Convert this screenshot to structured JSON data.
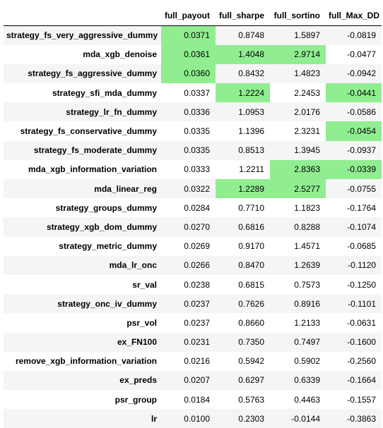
{
  "table": {
    "columns": [
      "",
      "full_payout",
      "full_sharpe",
      "full_sortino",
      "full_Max_DD"
    ],
    "highlight_color": "#90ee90",
    "rows": [
      {
        "name": "strategy_fs_very_aggressive_dummy",
        "values": [
          "0.0371",
          "0.8748",
          "1.5897",
          "-0.0819"
        ],
        "highlight": [
          true,
          false,
          false,
          false
        ]
      },
      {
        "name": "mda_xgb_denoise",
        "values": [
          "0.0361",
          "1.4048",
          "2.9714",
          "-0.0477"
        ],
        "highlight": [
          true,
          true,
          true,
          false
        ]
      },
      {
        "name": "strategy_fs_aggressive_dummy",
        "values": [
          "0.0360",
          "0.8432",
          "1.4823",
          "-0.0942"
        ],
        "highlight": [
          true,
          false,
          false,
          false
        ]
      },
      {
        "name": "strategy_sfi_mda_dummy",
        "values": [
          "0.0337",
          "1.2224",
          "2.2453",
          "-0.0441"
        ],
        "highlight": [
          false,
          true,
          false,
          true
        ]
      },
      {
        "name": "strategy_lr_fn_dummy",
        "values": [
          "0.0336",
          "1.0953",
          "2.0176",
          "-0.0586"
        ],
        "highlight": [
          false,
          false,
          false,
          false
        ]
      },
      {
        "name": "strategy_fs_conservative_dummy",
        "values": [
          "0.0335",
          "1.1396",
          "2.3231",
          "-0.0454"
        ],
        "highlight": [
          false,
          false,
          false,
          true
        ]
      },
      {
        "name": "strategy_fs_moderate_dummy",
        "values": [
          "0.0335",
          "0.8513",
          "1.3945",
          "-0.0937"
        ],
        "highlight": [
          false,
          false,
          false,
          false
        ]
      },
      {
        "name": "mda_xgb_information_variation",
        "values": [
          "0.0333",
          "1.2211",
          "2.8363",
          "-0.0339"
        ],
        "highlight": [
          false,
          false,
          true,
          true
        ]
      },
      {
        "name": "mda_linear_reg",
        "values": [
          "0.0322",
          "1.2289",
          "2.5277",
          "-0.0755"
        ],
        "highlight": [
          false,
          true,
          true,
          false
        ]
      },
      {
        "name": "strategy_groups_dummy",
        "values": [
          "0.0284",
          "0.7710",
          "1.1823",
          "-0.1764"
        ],
        "highlight": [
          false,
          false,
          false,
          false
        ]
      },
      {
        "name": "strategy_xgb_dom_dummy",
        "values": [
          "0.0270",
          "0.6816",
          "0.8288",
          "-0.1074"
        ],
        "highlight": [
          false,
          false,
          false,
          false
        ]
      },
      {
        "name": "strategy_metric_dummy",
        "values": [
          "0.0269",
          "0.9170",
          "1.4571",
          "-0.0685"
        ],
        "highlight": [
          false,
          false,
          false,
          false
        ]
      },
      {
        "name": "mda_lr_onc",
        "values": [
          "0.0266",
          "0.8470",
          "1.2639",
          "-0.1120"
        ],
        "highlight": [
          false,
          false,
          false,
          false
        ]
      },
      {
        "name": "sr_val",
        "values": [
          "0.0238",
          "0.6815",
          "0.7573",
          "-0.1250"
        ],
        "highlight": [
          false,
          false,
          false,
          false
        ]
      },
      {
        "name": "strategy_onc_iv_dummy",
        "values": [
          "0.0237",
          "0.7626",
          "0.8916",
          "-0.1101"
        ],
        "highlight": [
          false,
          false,
          false,
          false
        ]
      },
      {
        "name": "psr_vol",
        "values": [
          "0.0237",
          "0.8660",
          "1.2133",
          "-0.0631"
        ],
        "highlight": [
          false,
          false,
          false,
          false
        ]
      },
      {
        "name": "ex_FN100",
        "values": [
          "0.0231",
          "0.7350",
          "0.7497",
          "-0.1600"
        ],
        "highlight": [
          false,
          false,
          false,
          false
        ]
      },
      {
        "name": "remove_xgb_information_variation",
        "values": [
          "0.0216",
          "0.5942",
          "0.5902",
          "-0.2560"
        ],
        "highlight": [
          false,
          false,
          false,
          false
        ]
      },
      {
        "name": "ex_preds",
        "values": [
          "0.0207",
          "0.6297",
          "0.6339",
          "-0.1664"
        ],
        "highlight": [
          false,
          false,
          false,
          false
        ]
      },
      {
        "name": "psr_group",
        "values": [
          "0.0184",
          "0.5763",
          "0.4463",
          "-0.1557"
        ],
        "highlight": [
          false,
          false,
          false,
          false
        ]
      },
      {
        "name": "lr",
        "values": [
          "0.0100",
          "0.2303",
          "-0.0144",
          "-0.3863"
        ],
        "highlight": [
          false,
          false,
          false,
          false
        ]
      }
    ]
  }
}
